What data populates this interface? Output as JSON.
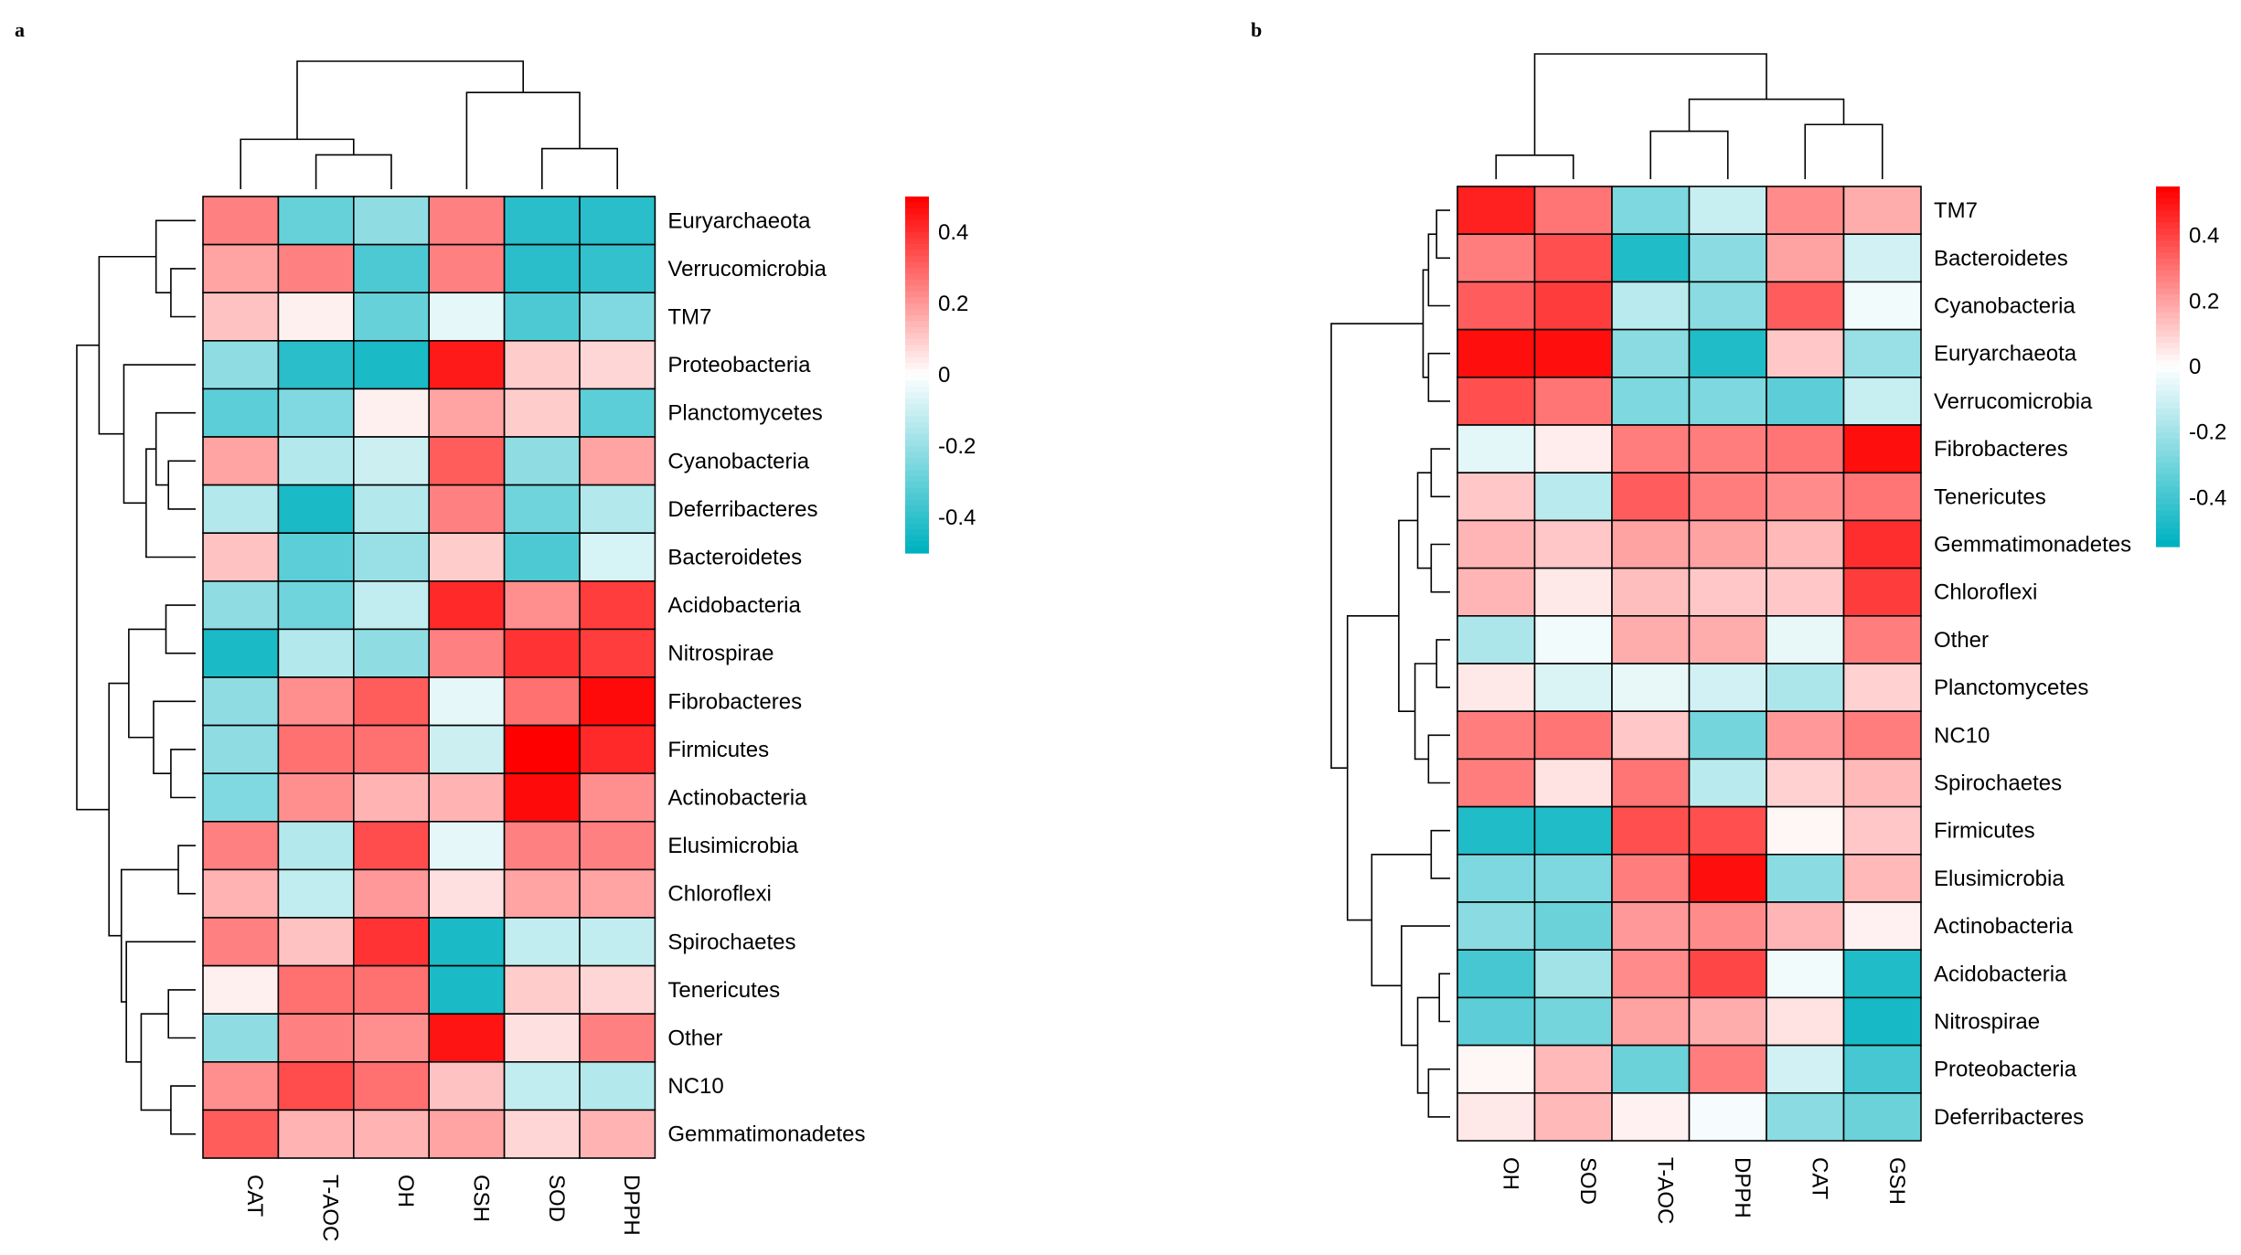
{
  "chart_data": [
    {
      "type": "heatmap",
      "panel_label": "a",
      "columns": [
        "CAT",
        "T-AOC",
        "OH",
        "GSH",
        "SOD",
        "DPPH"
      ],
      "rows": [
        "Euryarchaeota",
        "Verrucomicrobia",
        "TM7",
        "Proteobacteria",
        "Planctomycetes",
        "Cyanobacteria",
        "Deferribacteres",
        "Bacteroidetes",
        "Acidobacteria",
        "Nitrospirae",
        "Fibrobacteres",
        "Firmicutes",
        "Actinobacteria",
        "Elusimicrobia",
        "Chloroflexi",
        "Spirochaetes",
        "Tenericutes",
        "Other",
        "NC10",
        "Gemmatimonadetes"
      ],
      "values": [
        [
          0.25,
          -0.3,
          -0.22,
          0.25,
          -0.42,
          -0.42
        ],
        [
          0.18,
          0.25,
          -0.35,
          0.25,
          -0.42,
          -0.4
        ],
        [
          0.12,
          0.03,
          -0.3,
          -0.05,
          -0.35,
          -0.25
        ],
        [
          -0.22,
          -0.42,
          -0.45,
          0.45,
          0.1,
          0.08
        ],
        [
          -0.32,
          -0.25,
          0.03,
          0.18,
          0.1,
          -0.32
        ],
        [
          0.18,
          -0.15,
          -0.1,
          0.32,
          -0.22,
          0.18
        ],
        [
          -0.15,
          -0.45,
          -0.15,
          0.25,
          -0.28,
          -0.15
        ],
        [
          0.12,
          -0.32,
          -0.2,
          0.1,
          -0.35,
          -0.08
        ],
        [
          -0.22,
          -0.28,
          -0.12,
          0.42,
          0.22,
          0.38
        ],
        [
          -0.45,
          -0.15,
          -0.22,
          0.25,
          0.4,
          0.38
        ],
        [
          -0.22,
          0.22,
          0.32,
          -0.05,
          0.28,
          0.48
        ],
        [
          -0.22,
          0.28,
          0.28,
          -0.1,
          0.5,
          0.42
        ],
        [
          -0.25,
          0.22,
          0.15,
          0.15,
          0.48,
          0.22
        ],
        [
          0.25,
          -0.15,
          0.35,
          -0.05,
          0.25,
          0.25
        ],
        [
          0.15,
          -0.12,
          0.2,
          0.06,
          0.18,
          0.18
        ],
        [
          0.25,
          0.12,
          0.4,
          -0.45,
          -0.12,
          -0.12
        ],
        [
          0.03,
          0.28,
          0.28,
          -0.45,
          0.1,
          0.08
        ],
        [
          -0.22,
          0.25,
          0.22,
          0.46,
          0.06,
          0.25
        ],
        [
          0.22,
          0.35,
          0.28,
          0.12,
          -0.12,
          -0.15
        ],
        [
          0.32,
          0.15,
          0.15,
          0.18,
          0.08,
          0.15
        ]
      ],
      "legend": {
        "ticks": [
          0.4,
          0.2,
          0,
          -0.2,
          -0.4
        ],
        "tick_labels": [
          "0.4",
          "0.2",
          "0",
          "-0.2",
          "-0.4"
        ],
        "range": [
          -0.5,
          0.5
        ]
      },
      "colors": {
        "high": "#ff0000",
        "mid": "#ffffff",
        "low": "#00b2c0"
      },
      "col_tree": [
        {
          "a": 2,
          "b": 3,
          "h": 0.22
        },
        {
          "a": 1,
          "b": "m0",
          "h": 0.32
        },
        {
          "a": 5,
          "b": 6,
          "h": 0.26
        },
        {
          "a": 4,
          "b": "m2",
          "h": 0.62
        },
        {
          "a": "m1",
          "b": "m3",
          "h": 0.82
        }
      ],
      "row_tree": [
        {
          "a": 2,
          "b": 3,
          "h": 0.1
        },
        {
          "a": 1,
          "b": "m0",
          "h": 0.16
        },
        {
          "a": 6,
          "b": 7,
          "h": 0.11
        },
        {
          "a": 5,
          "b": "m2",
          "h": 0.16
        },
        {
          "a": 8,
          "b": "m3",
          "h": 0.2
        },
        {
          "a": 4,
          "b": "m4",
          "h": 0.29
        },
        {
          "a": "m1",
          "b": "m5",
          "h": 0.39
        },
        {
          "a": 9,
          "b": 10,
          "h": 0.12
        },
        {
          "a": 12,
          "b": 13,
          "h": 0.1
        },
        {
          "a": 11,
          "b": "m8",
          "h": 0.17
        },
        {
          "a": "m7",
          "b": "m9",
          "h": 0.27
        },
        {
          "a": 14,
          "b": 15,
          "h": 0.07
        },
        {
          "a": 17,
          "b": 18,
          "h": 0.11
        },
        {
          "a": 19,
          "b": 20,
          "h": 0.1
        },
        {
          "a": "m12",
          "b": "m13",
          "h": 0.22
        },
        {
          "a": 16,
          "b": "m14",
          "h": 0.28
        },
        {
          "a": "m11",
          "b": "m15",
          "h": 0.3
        },
        {
          "a": "m10",
          "b": "m16",
          "h": 0.35
        },
        {
          "a": "m6",
          "b": "m17",
          "h": 0.48
        }
      ]
    },
    {
      "type": "heatmap",
      "panel_label": "b",
      "columns": [
        "OH",
        "SOD",
        "T-AOC",
        "DPPH",
        "CAT",
        "GSH"
      ],
      "rows": [
        "TM7",
        "Bacteroidetes",
        "Cyanobacteria",
        "Euryarchaeota",
        "Verrucomicrobia",
        "Fibrobacteres",
        "Tenericutes",
        "Gemmatimonadetes",
        "Chloroflexi",
        "Other",
        "Planctomycetes",
        "NC10",
        "Spirochaetes",
        "Firmicutes",
        "Elusimicrobia",
        "Actinobacteria",
        "Acidobacteria",
        "Nitrospirae",
        "Proteobacteria",
        "Deferribacteres"
      ],
      "values": [
        [
          0.48,
          0.3,
          -0.28,
          -0.12,
          0.25,
          0.18
        ],
        [
          0.28,
          0.38,
          -0.48,
          -0.25,
          0.2,
          -0.1
        ],
        [
          0.35,
          0.42,
          -0.15,
          -0.25,
          0.35,
          -0.03
        ],
        [
          0.52,
          0.52,
          -0.25,
          -0.48,
          0.12,
          -0.22
        ],
        [
          0.38,
          0.3,
          -0.28,
          -0.28,
          -0.35,
          -0.12
        ],
        [
          -0.06,
          0.04,
          0.28,
          0.28,
          0.3,
          0.52
        ],
        [
          0.12,
          -0.15,
          0.35,
          0.28,
          0.25,
          0.3
        ],
        [
          0.16,
          0.12,
          0.2,
          0.2,
          0.15,
          0.45
        ],
        [
          0.16,
          0.05,
          0.14,
          0.12,
          0.12,
          0.42
        ],
        [
          -0.18,
          -0.03,
          0.18,
          0.18,
          -0.05,
          0.28
        ],
        [
          0.05,
          -0.08,
          -0.05,
          -0.1,
          -0.18,
          0.1
        ],
        [
          0.28,
          0.3,
          0.12,
          -0.3,
          0.22,
          0.28
        ],
        [
          0.28,
          0.06,
          0.3,
          -0.15,
          0.1,
          0.15
        ],
        [
          -0.48,
          -0.48,
          0.38,
          0.38,
          0.02,
          0.12
        ],
        [
          -0.28,
          -0.28,
          0.28,
          0.52,
          -0.25,
          0.15
        ],
        [
          -0.25,
          -0.32,
          0.22,
          0.25,
          0.16,
          0.03
        ],
        [
          -0.4,
          -0.2,
          0.25,
          0.4,
          -0.03,
          -0.48
        ],
        [
          -0.35,
          -0.3,
          0.2,
          0.18,
          0.06,
          -0.5
        ],
        [
          0.02,
          0.15,
          -0.32,
          0.28,
          -0.1,
          -0.4
        ],
        [
          0.05,
          0.15,
          0.03,
          -0.02,
          -0.25,
          -0.32
        ]
      ],
      "legend": {
        "ticks": [
          0.4,
          0.2,
          0,
          -0.2,
          -0.4
        ],
        "tick_labels": [
          "0.4",
          "0.2",
          "0",
          "-0.2",
          "-0.4"
        ],
        "range": [
          -0.55,
          0.55
        ]
      },
      "colors": {
        "high": "#ff0000",
        "mid": "#ffffff",
        "low": "#00b2c0"
      },
      "col_tree": [
        {
          "a": 1,
          "b": 2,
          "h": 0.18
        },
        {
          "a": 3,
          "b": 4,
          "h": 0.36
        },
        {
          "a": 5,
          "b": 6,
          "h": 0.41
        },
        {
          "a": "m1",
          "b": "m2",
          "h": 0.6
        },
        {
          "a": "m0",
          "b": "m3",
          "h": 0.94
        }
      ],
      "row_tree": [
        {
          "a": 1,
          "b": 2,
          "h": 0.05
        },
        {
          "a": "m0",
          "b": 3,
          "h": 0.08
        },
        {
          "a": 4,
          "b": 5,
          "h": 0.08
        },
        {
          "a": "m1",
          "b": "m2",
          "h": 0.1
        },
        {
          "a": 6,
          "b": 7,
          "h": 0.07
        },
        {
          "a": 8,
          "b": 9,
          "h": 0.07
        },
        {
          "a": "m4",
          "b": "m5",
          "h": 0.12
        },
        {
          "a": 10,
          "b": 11,
          "h": 0.05
        },
        {
          "a": 12,
          "b": 13,
          "h": 0.08
        },
        {
          "a": "m7",
          "b": "m8",
          "h": 0.13
        },
        {
          "a": "m6",
          "b": "m9",
          "h": 0.19
        },
        {
          "a": 14,
          "b": 15,
          "h": 0.07
        },
        {
          "a": 17,
          "b": 18,
          "h": 0.04
        },
        {
          "a": 19,
          "b": 20,
          "h": 0.08
        },
        {
          "a": "m12",
          "b": "m13",
          "h": 0.12
        },
        {
          "a": 16,
          "b": "m14",
          "h": 0.18
        },
        {
          "a": "m11",
          "b": "m15",
          "h": 0.29
        },
        {
          "a": "m10",
          "b": "m16",
          "h": 0.38
        },
        {
          "a": "m3",
          "b": "m17",
          "h": 0.44
        }
      ]
    }
  ]
}
